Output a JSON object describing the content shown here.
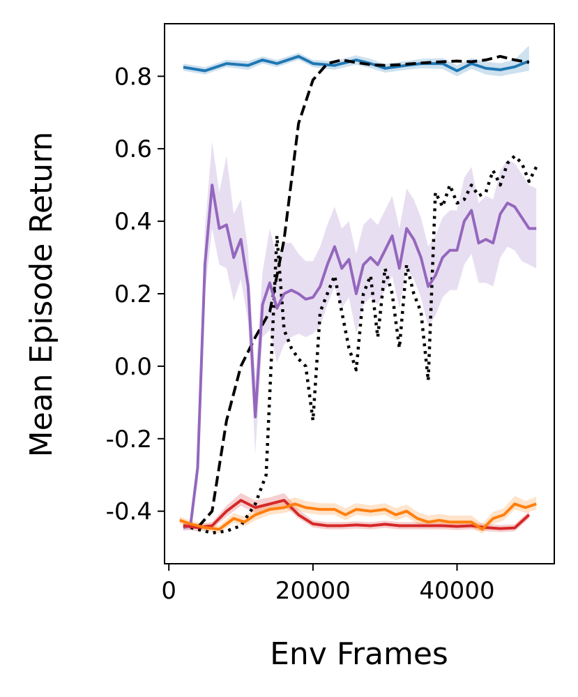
{
  "chart_data": {
    "type": "line",
    "title": "",
    "xlabel": "Env Frames",
    "ylabel": "Mean Episode Return",
    "xlim": [
      -600,
      53500
    ],
    "ylim": [
      -0.545,
      0.945
    ],
    "xticks": [
      0,
      20000,
      40000
    ],
    "xtick_labels": [
      "0",
      "20000",
      "40000"
    ],
    "yticks": [
      0.8,
      0.6,
      0.4,
      0.2,
      0.0,
      -0.2,
      -0.4
    ],
    "ytick_labels": [
      "0.8",
      "0.6",
      "0.4",
      "0.2",
      "0.0",
      "-0.2",
      "-0.4"
    ],
    "grid": false,
    "series": [
      {
        "name": "blue",
        "color": "#1f77b4",
        "style": "solid",
        "x": [
          2000,
          5000,
          8000,
          11000,
          13000,
          15000,
          18000,
          20000,
          23000,
          26000,
          28000,
          30000,
          33000,
          35000,
          38000,
          40000,
          42000,
          44000,
          46000,
          48000,
          50000
        ],
        "y": [
          0.825,
          0.815,
          0.835,
          0.83,
          0.845,
          0.835,
          0.855,
          0.835,
          0.83,
          0.845,
          0.835,
          0.822,
          0.83,
          0.835,
          0.835,
          0.815,
          0.835,
          0.822,
          0.818,
          0.826,
          0.842
        ],
        "band_lower": [
          0.815,
          0.805,
          0.825,
          0.818,
          0.835,
          0.825,
          0.845,
          0.825,
          0.818,
          0.832,
          0.822,
          0.81,
          0.818,
          0.822,
          0.82,
          0.8,
          0.82,
          0.805,
          0.8,
          0.808,
          0.815
        ],
        "band_upper": [
          0.835,
          0.825,
          0.845,
          0.842,
          0.855,
          0.845,
          0.865,
          0.845,
          0.842,
          0.858,
          0.848,
          0.834,
          0.842,
          0.848,
          0.85,
          0.83,
          0.85,
          0.84,
          0.836,
          0.846,
          0.885
        ]
      },
      {
        "name": "black-dashed",
        "color": "#000000",
        "style": "dashed",
        "x": [
          2000,
          4000,
          6000,
          8000,
          10000,
          12000,
          14000,
          16000,
          18000,
          20000,
          22000,
          24000,
          26000,
          28000,
          30000,
          32000,
          34000,
          36000,
          38000,
          40000,
          42000,
          44000,
          46000,
          48000,
          50000
        ],
        "y": [
          -0.44,
          -0.445,
          -0.4,
          -0.15,
          0.0,
          0.08,
          0.15,
          0.35,
          0.67,
          0.79,
          0.835,
          0.845,
          0.838,
          0.832,
          0.83,
          0.832,
          0.835,
          0.838,
          0.84,
          0.842,
          0.84,
          0.845,
          0.855,
          0.845,
          0.838
        ]
      },
      {
        "name": "black-dotted",
        "color": "#000000",
        "style": "dotted",
        "x": [
          2000,
          4000,
          6000,
          8000,
          10000,
          12000,
          13500,
          15000,
          16000,
          17000,
          18000,
          19000,
          20000,
          21000,
          22000,
          23000,
          24000,
          25000,
          26000,
          27000,
          28000,
          29000,
          30000,
          31000,
          32000,
          33000,
          34000,
          35000,
          36000,
          37000,
          38000,
          39000,
          40000,
          41000,
          42000,
          43000,
          44000,
          45000,
          46000,
          47000,
          48000,
          49000,
          50000,
          51000
        ],
        "y": [
          -0.44,
          -0.45,
          -0.46,
          -0.455,
          -0.44,
          -0.38,
          -0.3,
          0.36,
          0.1,
          0.05,
          0.02,
          0.0,
          -0.15,
          0.15,
          0.2,
          0.25,
          0.15,
          0.05,
          -0.01,
          0.2,
          0.25,
          0.08,
          0.27,
          0.2,
          0.05,
          0.28,
          0.2,
          0.15,
          -0.04,
          0.48,
          0.44,
          0.5,
          0.45,
          0.46,
          0.5,
          0.47,
          0.48,
          0.54,
          0.5,
          0.56,
          0.58,
          0.56,
          0.51,
          0.55
        ]
      },
      {
        "name": "purple",
        "color": "#9467bd",
        "style": "solid",
        "x": [
          2000,
          3000,
          4000,
          5000,
          6000,
          7000,
          8000,
          9000,
          10000,
          11000,
          12000,
          13000,
          14000,
          15000,
          16000,
          17000,
          18000,
          19000,
          20000,
          21000,
          22000,
          23000,
          24000,
          25000,
          26000,
          27000,
          28000,
          29000,
          30000,
          31000,
          32000,
          33000,
          34000,
          35000,
          36000,
          37000,
          38000,
          39000,
          40000,
          41000,
          42000,
          43000,
          44000,
          45000,
          46000,
          47000,
          48000,
          49000,
          50000,
          51000
        ],
        "y": [
          -0.445,
          -0.44,
          -0.28,
          0.28,
          0.5,
          0.38,
          0.39,
          0.3,
          0.35,
          0.22,
          -0.14,
          0.17,
          0.23,
          0.16,
          0.2,
          0.21,
          0.2,
          0.185,
          0.19,
          0.22,
          0.28,
          0.33,
          0.27,
          0.295,
          0.2,
          0.28,
          0.3,
          0.28,
          0.32,
          0.36,
          0.27,
          0.38,
          0.35,
          0.3,
          0.22,
          0.25,
          0.3,
          0.32,
          0.32,
          0.4,
          0.43,
          0.34,
          0.35,
          0.34,
          0.42,
          0.45,
          0.44,
          0.41,
          0.38,
          0.38
        ],
        "band_lower": [
          -0.455,
          -0.45,
          -0.32,
          0.2,
          0.38,
          0.28,
          0.27,
          0.18,
          0.24,
          0.12,
          -0.24,
          0.08,
          0.1,
          0.01,
          0.06,
          0.08,
          0.09,
          0.08,
          0.09,
          0.11,
          0.17,
          0.22,
          0.16,
          0.19,
          0.09,
          0.17,
          0.19,
          0.17,
          0.21,
          0.25,
          0.16,
          0.27,
          0.24,
          0.19,
          0.11,
          0.14,
          0.19,
          0.21,
          0.21,
          0.28,
          0.31,
          0.23,
          0.23,
          0.22,
          0.3,
          0.33,
          0.32,
          0.29,
          0.28,
          0.27
        ],
        "band_upper": [
          -0.435,
          -0.43,
          -0.24,
          0.38,
          0.62,
          0.48,
          0.58,
          0.42,
          0.46,
          0.32,
          -0.04,
          0.26,
          0.38,
          0.3,
          0.34,
          0.34,
          0.31,
          0.29,
          0.29,
          0.33,
          0.39,
          0.44,
          0.38,
          0.4,
          0.31,
          0.39,
          0.41,
          0.39,
          0.43,
          0.47,
          0.38,
          0.49,
          0.46,
          0.41,
          0.33,
          0.36,
          0.41,
          0.43,
          0.43,
          0.52,
          0.55,
          0.45,
          0.47,
          0.46,
          0.54,
          0.57,
          0.56,
          0.53,
          0.5,
          0.49
        ]
      },
      {
        "name": "red",
        "color": "#d62728",
        "style": "solid",
        "x": [
          2000,
          4000,
          6000,
          8000,
          10000,
          12000,
          14000,
          16000,
          18000,
          20000,
          22000,
          24000,
          26000,
          28000,
          30000,
          32000,
          34000,
          36000,
          38000,
          40000,
          42000,
          44000,
          46000,
          48000,
          50000
        ],
        "y": [
          -0.44,
          -0.445,
          -0.44,
          -0.4,
          -0.37,
          -0.39,
          -0.38,
          -0.37,
          -0.41,
          -0.435,
          -0.44,
          -0.44,
          -0.438,
          -0.44,
          -0.436,
          -0.44,
          -0.44,
          -0.44,
          -0.44,
          -0.442,
          -0.44,
          -0.445,
          -0.448,
          -0.446,
          -0.41
        ],
        "band_lower": [
          -0.45,
          -0.455,
          -0.45,
          -0.415,
          -0.385,
          -0.405,
          -0.395,
          -0.385,
          -0.42,
          -0.445,
          -0.45,
          -0.45,
          -0.448,
          -0.45,
          -0.446,
          -0.45,
          -0.45,
          -0.45,
          -0.45,
          -0.452,
          -0.45,
          -0.455,
          -0.458,
          -0.456,
          -0.42
        ],
        "band_upper": [
          -0.43,
          -0.435,
          -0.43,
          -0.385,
          -0.35,
          -0.37,
          -0.362,
          -0.35,
          -0.395,
          -0.425,
          -0.43,
          -0.43,
          -0.428,
          -0.43,
          -0.426,
          -0.43,
          -0.43,
          -0.43,
          -0.43,
          -0.432,
          -0.43,
          -0.435,
          -0.438,
          -0.436,
          -0.4
        ]
      },
      {
        "name": "orange",
        "color": "#ff7f0e",
        "style": "solid",
        "x": [
          1500,
          3000,
          5000,
          7000,
          9000,
          10500,
          12000,
          14000,
          16000,
          17500,
          19000,
          21000,
          23000,
          24500,
          26000,
          28000,
          30000,
          31500,
          33000,
          34500,
          36000,
          37500,
          39000,
          40500,
          42000,
          43500,
          45000,
          46500,
          48000,
          49500,
          51000
        ],
        "y": [
          -0.425,
          -0.435,
          -0.445,
          -0.45,
          -0.42,
          -0.43,
          -0.41,
          -0.395,
          -0.39,
          -0.38,
          -0.39,
          -0.395,
          -0.395,
          -0.41,
          -0.395,
          -0.4,
          -0.395,
          -0.41,
          -0.4,
          -0.42,
          -0.43,
          -0.425,
          -0.43,
          -0.43,
          -0.43,
          -0.45,
          -0.42,
          -0.41,
          -0.38,
          -0.39,
          -0.38
        ],
        "band_lower": [
          -0.435,
          -0.445,
          -0.455,
          -0.46,
          -0.432,
          -0.442,
          -0.425,
          -0.41,
          -0.405,
          -0.395,
          -0.405,
          -0.41,
          -0.41,
          -0.425,
          -0.41,
          -0.415,
          -0.41,
          -0.425,
          -0.415,
          -0.435,
          -0.445,
          -0.44,
          -0.445,
          -0.445,
          -0.445,
          -0.462,
          -0.435,
          -0.425,
          -0.395,
          -0.405,
          -0.395
        ],
        "band_upper": [
          -0.415,
          -0.425,
          -0.435,
          -0.44,
          -0.405,
          -0.415,
          -0.392,
          -0.378,
          -0.372,
          -0.362,
          -0.372,
          -0.378,
          -0.378,
          -0.392,
          -0.378,
          -0.384,
          -0.378,
          -0.392,
          -0.382,
          -0.402,
          -0.412,
          -0.408,
          -0.412,
          -0.412,
          -0.412,
          -0.435,
          -0.402,
          -0.392,
          -0.358,
          -0.372,
          -0.36
        ]
      }
    ]
  }
}
